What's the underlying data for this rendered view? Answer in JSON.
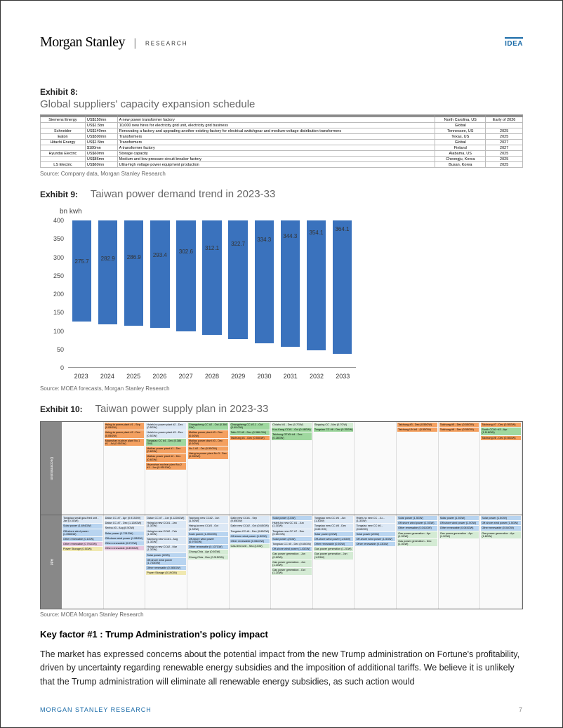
{
  "header": {
    "logo_main": "Morgan Stanley",
    "logo_sub": "RESEARCH",
    "idea": "IDEA"
  },
  "exhibit8": {
    "label": "Exhibit 8:",
    "title": "Global suppliers' capacity expansion schedule",
    "headers": [
      "",
      "",
      "",
      "",
      ""
    ],
    "rows": [
      {
        "company": "Siemens Energy",
        "amt": "US$150mn",
        "desc": "A new power transformer factory",
        "loc": "North Carolina, US",
        "when": "Early of 2026"
      },
      {
        "company": "",
        "amt": "US$1.5bn",
        "desc": "10,000 new hires for electricity grid unit, electricity grid business",
        "loc": "Global",
        "when": ""
      },
      {
        "company": "Schneider",
        "amt": "US$140mn",
        "desc": "Renovating a factory and upgrading another existing factory for electrical switchgear and medium-voltage distribution transformers",
        "loc": "Tennessee, US",
        "when": "2025"
      },
      {
        "company": "Eaton",
        "amt": "US$500mn",
        "desc": "Transformers",
        "loc": "Texas, US",
        "when": "2025"
      },
      {
        "company": "Hitachi Energy",
        "amt": "US$1.5bn",
        "desc": "Transformers",
        "loc": "Global",
        "when": "2027"
      },
      {
        "company": "",
        "amt": "$180mn",
        "desc": "A transformer factory",
        "loc": "Finland",
        "when": "2027"
      },
      {
        "company": "Hyundai Electric",
        "amt": "US$60mn",
        "desc": "Storage capacity",
        "loc": "Alabama, US",
        "when": "2025"
      },
      {
        "company": "",
        "amt": "US$86mn",
        "desc": "Medium and low-pressure circuit breaker factory",
        "loc": "Cheongju, Korea",
        "when": "2025"
      },
      {
        "company": "LS Electric",
        "amt": "US$60mn",
        "desc": "Ultra-high voltage power equipment production",
        "loc": "Busan, Korea",
        "when": "2025"
      }
    ],
    "source": "Source: Company data, Morgan Stanley Research"
  },
  "exhibit9": {
    "label": "Exhibit 9:",
    "title": "Taiwan power demand trend in 2023-33",
    "ylabel": "bn kwh",
    "ymax": 400,
    "ytick_step": 50,
    "categories": [
      "2023",
      "2024",
      "2025",
      "2026",
      "2027",
      "2028",
      "2029",
      "2030",
      "2031",
      "2032",
      "2033"
    ],
    "values": [
      275.7,
      282.9,
      286.9,
      293.4,
      302.6,
      312.1,
      322.7,
      334.3,
      344.3,
      354.1,
      364.1
    ],
    "bar_color": "#3a72bd",
    "source": "Source: MOEA forecasts, Morgan Stanley Research"
  },
  "exhibit10": {
    "label": "Exhibit 10:",
    "title": "Taiwan power supply plan in 2023-33",
    "side_labels": [
      "Decommission",
      "Add"
    ],
    "decom_cols": [
      [],
      [
        {
          "t": "Hsing-ta power plant #1 - Sep (0.05GW)",
          "c": "c-or"
        },
        {
          "t": "Hsing-ta power plant #2 - Dec (0.05GW)",
          "c": "c-or"
        },
        {
          "t": "Maanshan nuclear plant No.1 #1 - Jul (0.95GW)",
          "c": "c-or"
        }
      ],
      [
        {
          "t": "Hsieh-ho power plant #2 - Dec (0.5GW)",
          "c": "c-lb"
        },
        {
          "t": "Hsieh-ho power plant #3 - Dec (0.5GW)",
          "c": "c-lb"
        },
        {
          "t": "Tongsiao CC #4 - Dec (0.386 GW)",
          "c": "c-gr"
        },
        {
          "t": "Mailiao power plant #1 - Dec (0.6GW)",
          "c": "c-or"
        },
        {
          "t": "Mailiao power plant #2 - Dec (0.6GW)",
          "c": "c-or"
        },
        {
          "t": "Maanshan nuclear plant No.2 #1 - Jun (0.951GW)",
          "c": "c-or"
        }
      ],
      [
        {
          "t": "Changsheng CC #2 - Oct (0.386 GW)",
          "c": "c-gr"
        },
        {
          "t": "Mailiao power plant #3 - Dec (0.6GW)",
          "c": "c-or"
        },
        {
          "t": "Mailiao power plant #3 - Dec (0.6GW)",
          "c": "c-or"
        },
        {
          "t": "No.1 #2 - Oct (0.55GW)",
          "c": "c-or"
        },
        {
          "t": "Hsing-ta power plant No.3 - Dec (0.55GW)",
          "c": "c-or"
        }
      ],
      [
        {
          "t": "Changsheng CC #2.1 - Oct (0.49 GW)",
          "c": "c-gr"
        },
        {
          "t": "Talin CC #5 - Dec (0.386 GW)",
          "c": "c-gr"
        },
        {
          "t": "Taichung #1 - Dec (0.55GW)",
          "c": "c-or"
        }
      ],
      [
        {
          "t": "Chiahui #1 - Dec (0.7GW)",
          "c": "c-lg"
        },
        {
          "t": "Kuo-Kang CC#1 - Oct (0.48GW)",
          "c": "c-gr"
        },
        {
          "t": "Taichung GT#3~#4 - Dec (0.28GW)",
          "c": "c-gr"
        }
      ],
      [
        {
          "t": "Singsing CC - Mar (0.7GW)",
          "c": "c-lg"
        },
        {
          "t": "Tongsiao CC #6 - Dec (0.25GW)",
          "c": "c-gr"
        }
      ],
      [],
      [
        {
          "t": "Taichung #3 - Dec (0.55GW)",
          "c": "c-or"
        },
        {
          "t": "Taichung UN #4 - (0.55GW)",
          "c": "c-or"
        }
      ],
      [
        {
          "t": "Taichung #5 - Dec (0.55GW)",
          "c": "c-or"
        },
        {
          "t": "Taichung #6 - Dec (0.55GW)",
          "c": "c-or"
        }
      ],
      [
        {
          "t": "Taichung #7 - Dec (0.55GW)",
          "c": "c-or"
        },
        {
          "t": "South CC#1~#3 - Apr (1.118GW)",
          "c": "c-gr"
        },
        {
          "t": "Taichung #8 - Dec (0.55GW)",
          "c": "c-or"
        }
      ]
    ],
    "add_cols": [
      [
        {
          "t": "Tongsiao small gas-fired unit - Jan (0.3GW)",
          "c": "c-lb"
        },
        {
          "t": "Solar power (1.694GW)",
          "c": "c-bl"
        },
        {
          "t": "Off-shore wind power (1.058GW)",
          "c": "c-bl"
        },
        {
          "t": "Other renewable (0.1GW)",
          "c": "c-bl"
        },
        {
          "t": "Other renewable (0.791GW)",
          "c": "c-pk"
        },
        {
          "t": "Power Storage (0.5GW)",
          "c": "c-yl"
        }
      ],
      [
        {
          "t": "Datan CC #7 - Apr (0.913GW)",
          "c": "c-lb"
        },
        {
          "t": "Datan CC #7 - Dec (1.128GW)",
          "c": "c-lb"
        },
        {
          "t": "Senba #3 - Aug (0.5GW)",
          "c": "c-lb"
        },
        {
          "t": "Solar power (1.791GW)",
          "c": "c-bl"
        },
        {
          "t": "Off-shore wind power (1.28GW)",
          "c": "c-bl"
        },
        {
          "t": "Other renewable (0.07GW)",
          "c": "c-bl"
        },
        {
          "t": "Other renewable (0.893GW)",
          "c": "c-pk"
        }
      ],
      [
        {
          "t": "Datan CC #7 - Jun (0.1228GW)",
          "c": "c-lb"
        },
        {
          "t": "Hsing-ta new CC#1 - Jan (1.3GW)",
          "c": "c-lb"
        },
        {
          "t": "Hsing-ta new CC#2 - Feb (1.3GW)",
          "c": "c-lb"
        },
        {
          "t": "Taichung new CC#1 - Aug (1.3GW)",
          "c": "c-lb"
        },
        {
          "t": "Hsing-ta new CC#2 - Mar (1.3GW)",
          "c": "c-lb"
        },
        {
          "t": "Solar power (2GW)",
          "c": "c-bl"
        },
        {
          "t": "Off-shore wind power (1.733GW)",
          "c": "c-bl"
        },
        {
          "t": "Other renewable (0.065GW)",
          "c": "c-bl"
        },
        {
          "t": "Power Storage (0.19GW)",
          "c": "c-yl"
        }
      ],
      [
        {
          "t": "Taichung new CC#2 - Jun (1.3GW)",
          "c": "c-lb"
        },
        {
          "t": "Hsing-ta new CC#3 - Oct (1.3GW)",
          "c": "c-lb"
        },
        {
          "t": "Solar power (1.491GW)",
          "c": "c-bl"
        },
        {
          "t": "Off-shore wind power (0.975GW)",
          "c": "c-bl"
        },
        {
          "t": "Other renewable (0.107GW)",
          "c": "c-bl"
        },
        {
          "t": "Chung Chia - Apr (0.6GW)",
          "c": "c-lg"
        },
        {
          "t": "Chung Chia - Dec (0.015GW)",
          "c": "c-lg"
        }
      ],
      [
        {
          "t": "Dalin new CC#1 - Sep (0.65GW)",
          "c": "c-lb"
        },
        {
          "t": "Dalin new CC#2 - Oct (0.65GW)",
          "c": "c-lb"
        },
        {
          "t": "Tongsiao CC #4 - Dec (0.65GW)",
          "c": "c-lb"
        },
        {
          "t": "Off-shore wind power (1.5GW)",
          "c": "c-bl"
        },
        {
          "t": "Other renewable (0.064GW)",
          "c": "c-bl"
        },
        {
          "t": "Gas-fired unit - Sea (1GW)",
          "c": "c-lg"
        }
      ],
      [
        {
          "t": "Solar power (1GW)",
          "c": "c-bl"
        },
        {
          "t": "Hsieh-ho new CC #1 - Jun (1.3GW)",
          "c": "c-lb"
        },
        {
          "t": "Tongsiao new CC #7 - Dec (0.65 GW)",
          "c": "c-lb"
        },
        {
          "t": "Solar power (2GW)",
          "c": "c-bl"
        },
        {
          "t": "Tongsiao CC #5 - Dec (0.65GW)",
          "c": "c-lb"
        },
        {
          "t": "Off-shore wind power (1.43GW)",
          "c": "c-bl"
        },
        {
          "t": "Gas power generation - Jun (0.6GW)",
          "c": "c-lg"
        },
        {
          "t": "Gas power generation - Jun (1.2GW)",
          "c": "c-lg"
        },
        {
          "t": "Gas power generation - Oct (1.2GW)",
          "c": "c-lg"
        }
      ],
      [
        {
          "t": "Tongsiao new CC #6 - Jun (1.3GW)",
          "c": "c-lb"
        },
        {
          "t": "Tongsiao new CC #8 - Dec (0.65 GW)",
          "c": "c-lb"
        },
        {
          "t": "Solar power (2GW)",
          "c": "c-bl"
        },
        {
          "t": "Off-shore wind power (1.5GW)",
          "c": "c-bl"
        },
        {
          "t": "Other renewable (0.5GW)",
          "c": "c-bl"
        },
        {
          "t": "Gas power generation (1.2GW)",
          "c": "c-lg"
        },
        {
          "t": "Gas power generation - Jun (1.2GW)",
          "c": "c-lg"
        }
      ],
      [
        {
          "t": "Hsieh-ho new CC - Ju... (1.3GW)",
          "c": "c-lb"
        },
        {
          "t": "Tongsiao new CC #6 - (0.65GW)",
          "c": "c-lb"
        },
        {
          "t": "Solar power (2GW)",
          "c": "c-bl"
        },
        {
          "t": "Off-shore wind power (1.5GW)",
          "c": "c-bl"
        },
        {
          "t": "Other renewable (0.13GW)",
          "c": "c-bl"
        }
      ],
      [
        {
          "t": "Solar power (1.5GW)",
          "c": "c-bl"
        },
        {
          "t": "Off-shore wind power (1.5GW)",
          "c": "c-bl"
        },
        {
          "t": "Other renewable (0.041GW)",
          "c": "c-bl"
        },
        {
          "t": "Gas power generation - Apr (1.3GW)",
          "c": "c-lg"
        },
        {
          "t": "Gas power generation - Dec (1.3GW)",
          "c": "c-lg"
        }
      ],
      [
        {
          "t": "Solar power (1.5GW)",
          "c": "c-bl"
        },
        {
          "t": "Off-shore wind power (1.5GW)",
          "c": "c-bl"
        },
        {
          "t": "Other renewable (0.045GW)",
          "c": "c-bl"
        },
        {
          "t": "Gas power generation - Apr (1.3GW)",
          "c": "c-lg"
        }
      ],
      [
        {
          "t": "Solar power (1.5GW)",
          "c": "c-bl"
        },
        {
          "t": "Off-shore wind power (1.5GW)",
          "c": "c-bl"
        },
        {
          "t": "Other renewable (0.04GW)",
          "c": "c-bl"
        },
        {
          "t": "Gas power generation - Apr (1.8GW)",
          "c": "c-lg"
        }
      ]
    ],
    "source": "Source: MOEA Morgan Stanley Research"
  },
  "key_factor": "Key factor #1 : Trump Administration's policy impact",
  "body": "The market has expressed concerns about the potential impact from the new Trump administration on Fortune's profitability, driven by uncertainty regarding renewable energy subsidies and the imposition of additional tariffs. We believe it is unlikely that the Trump administration will eliminate all renewable energy subsidies, as such action would",
  "footer": {
    "left": "MORGAN STANLEY RESEARCH",
    "page": "7"
  }
}
